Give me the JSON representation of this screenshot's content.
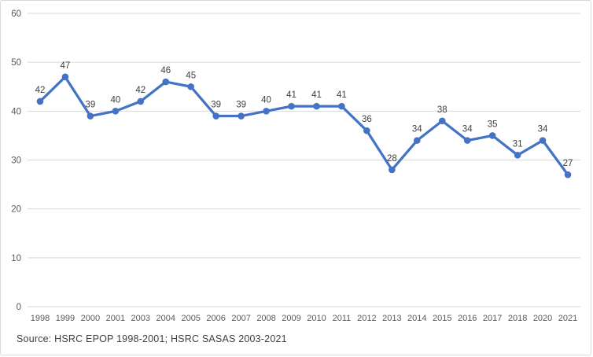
{
  "source_note": "Source: HSRC EPOP 1998-2001; HSRC SASAS 2003-2021",
  "chart_data": {
    "type": "line",
    "title": "",
    "xlabel": "",
    "ylabel": "",
    "categories": [
      "1998",
      "1999",
      "2000",
      "2001",
      "2003",
      "2004",
      "2005",
      "2006",
      "2007",
      "2008",
      "2009",
      "2010",
      "2011",
      "2012",
      "2013",
      "2014",
      "2015",
      "2016",
      "2017",
      "2018",
      "2020",
      "2021"
    ],
    "values": [
      42,
      47,
      39,
      40,
      42,
      46,
      45,
      39,
      39,
      40,
      41,
      41,
      41,
      36,
      28,
      34,
      38,
      34,
      35,
      31,
      34,
      27
    ],
    "ylim": [
      0,
      60
    ],
    "yticks": [
      0,
      10,
      20,
      30,
      40,
      50,
      60
    ],
    "grid": true,
    "legend": "none",
    "data_labels": true,
    "colors": {
      "line": "#4472C4",
      "marker": "#4472C4",
      "gridline": "#D9D9D9",
      "tick_label": "#595959",
      "data_label": "#404040",
      "source_text": "#404040",
      "background": "#FFFFFF",
      "frame_border": "#D9D9D9"
    }
  }
}
